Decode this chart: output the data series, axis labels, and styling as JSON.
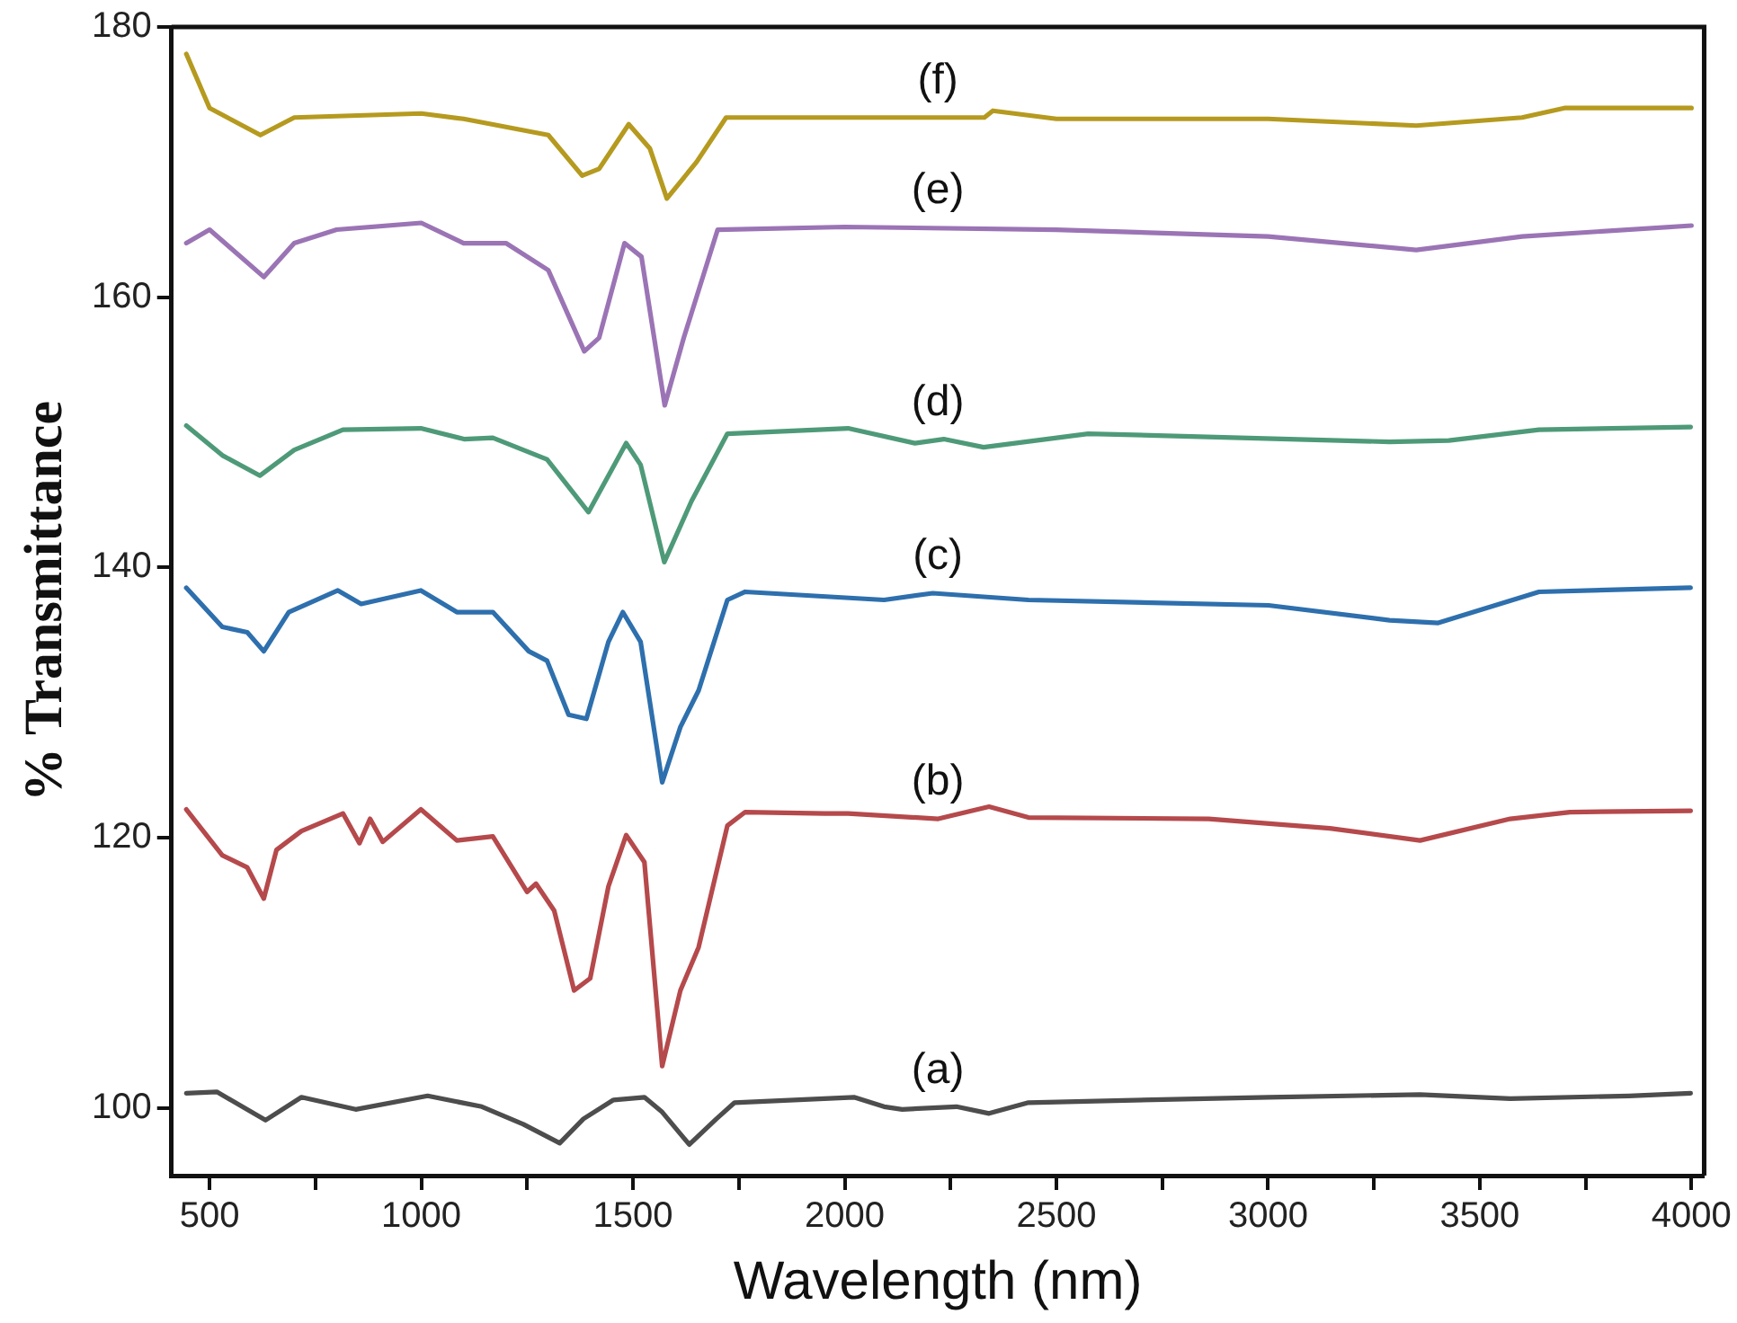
{
  "chart_data": {
    "type": "line",
    "xlabel": "Wavelength (nm)",
    "ylabel": "% Transmittance",
    "xlim": [
      410,
      4030
    ],
    "ylim": [
      95,
      180
    ],
    "xticks": [
      500,
      {
        "value": 750,
        "label": null
      },
      1000,
      {
        "value": 1250,
        "label": null
      },
      1500,
      {
        "value": 1750,
        "label": null
      },
      2000,
      {
        "value": 2250,
        "label": null
      },
      2500,
      {
        "value": 2750,
        "label": null
      },
      3000,
      {
        "value": 3250,
        "label": null
      },
      3500,
      {
        "value": 3750,
        "label": null
      },
      4000
    ],
    "yticks": [
      100,
      120,
      140,
      160,
      180
    ],
    "grid": false,
    "legend": false,
    "marker": "none",
    "line_style": "solid",
    "series": [
      {
        "color": "#4d4d4d",
        "x": [
          445,
          517,
          632,
          717,
          845,
          1015,
          1143,
          1241,
          1327,
          1383,
          1454,
          1527,
          1569,
          1633,
          1697,
          1740,
          2022,
          2093,
          2136,
          2264,
          2341,
          2434,
          3001,
          3359,
          3572,
          3853,
          3998
        ],
        "values": [
          101.1,
          101.2,
          99.1,
          100.8,
          99.9,
          100.9,
          100.1,
          98.8,
          97.4,
          99.2,
          100.6,
          100.8,
          99.7,
          97.3,
          99.2,
          100.4,
          100.8,
          100.1,
          99.9,
          100.1,
          99.6,
          100.4,
          100.8,
          101.0,
          100.7,
          100.9,
          101.1
        ]
      },
      {
        "color": "#b5494b",
        "x": [
          445,
          530,
          589,
          628,
          658,
          717,
          815,
          854,
          879,
          909,
          999,
          1084,
          1169,
          1250,
          1271,
          1314,
          1361,
          1399,
          1442,
          1484,
          1527,
          1569,
          1612,
          1655,
          1723,
          1765,
          1953,
          2008,
          2221,
          2341,
          2434,
          2860,
          3146,
          3359,
          3572,
          3713,
          3998
        ],
        "values": [
          122.1,
          118.7,
          117.8,
          115.5,
          119.1,
          120.5,
          121.8,
          119.6,
          121.4,
          119.7,
          122.1,
          119.8,
          120.1,
          116.0,
          116.6,
          114.6,
          108.7,
          109.6,
          116.4,
          120.2,
          118.2,
          103.1,
          108.7,
          111.9,
          120.9,
          121.9,
          121.8,
          121.8,
          121.4,
          122.3,
          121.5,
          121.4,
          120.7,
          119.8,
          121.4,
          121.9,
          122.0
        ]
      },
      {
        "color": "#2e6fad",
        "x": [
          445,
          530,
          589,
          628,
          687,
          803,
          858,
          999,
          1084,
          1169,
          1254,
          1297,
          1348,
          1390,
          1442,
          1476,
          1518,
          1569,
          1612,
          1655,
          1723,
          1765,
          2093,
          2208,
          2434,
          3001,
          3287,
          3402,
          3640,
          3998
        ],
        "values": [
          138.5,
          135.6,
          135.2,
          133.8,
          136.7,
          138.3,
          137.3,
          138.3,
          136.7,
          136.7,
          133.8,
          133.1,
          129.1,
          128.8,
          134.5,
          136.7,
          134.5,
          124.1,
          128.2,
          130.9,
          137.6,
          138.2,
          137.6,
          138.1,
          137.6,
          137.2,
          136.1,
          135.9,
          138.2,
          138.5
        ]
      },
      {
        "color": "#4e9a78",
        "x": [
          445,
          530,
          619,
          700,
          815,
          999,
          1101,
          1169,
          1297,
          1395,
          1484,
          1518,
          1574,
          1638,
          1723,
          2008,
          2166,
          2234,
          2328,
          2575,
          3287,
          3427,
          3640,
          3998
        ],
        "values": [
          150.5,
          148.3,
          146.8,
          148.7,
          150.2,
          150.3,
          149.5,
          149.6,
          148.0,
          144.1,
          149.2,
          147.6,
          140.4,
          144.9,
          149.9,
          150.3,
          149.2,
          149.5,
          148.9,
          149.9,
          149.3,
          149.4,
          150.2,
          150.4
        ]
      },
      {
        "color": "#9b74b5",
        "x": [
          445,
          500,
          628,
          700,
          800,
          1000,
          1100,
          1200,
          1300,
          1385,
          1420,
          1480,
          1520,
          1575,
          1620,
          1700,
          2000,
          2500,
          3000,
          3350,
          3600,
          4000
        ],
        "values": [
          164,
          165,
          161.5,
          164,
          165,
          165.5,
          164,
          164,
          162,
          156,
          157,
          164,
          163,
          152,
          157,
          165,
          165.2,
          165,
          164.5,
          163.5,
          164.5,
          165.3
        ]
      },
      {
        "color": "#b59a1f",
        "x": [
          445,
          500,
          620,
          700,
          1000,
          1100,
          1300,
          1380,
          1420,
          1490,
          1540,
          1580,
          1650,
          1720,
          2000,
          2330,
          2350,
          2500,
          3000,
          3350,
          3600,
          3700,
          4000
        ],
        "values": [
          178,
          174,
          172,
          173.3,
          173.6,
          173.2,
          172,
          169,
          169.5,
          172.8,
          171,
          167.3,
          170,
          173.3,
          173.3,
          173.3,
          173.8,
          173.2,
          173.2,
          172.7,
          173.3,
          174,
          174
        ]
      }
    ],
    "annotations": [
      "(a)",
      "(b)",
      "(c)",
      "(d)",
      "(e)",
      "(f)"
    ]
  }
}
